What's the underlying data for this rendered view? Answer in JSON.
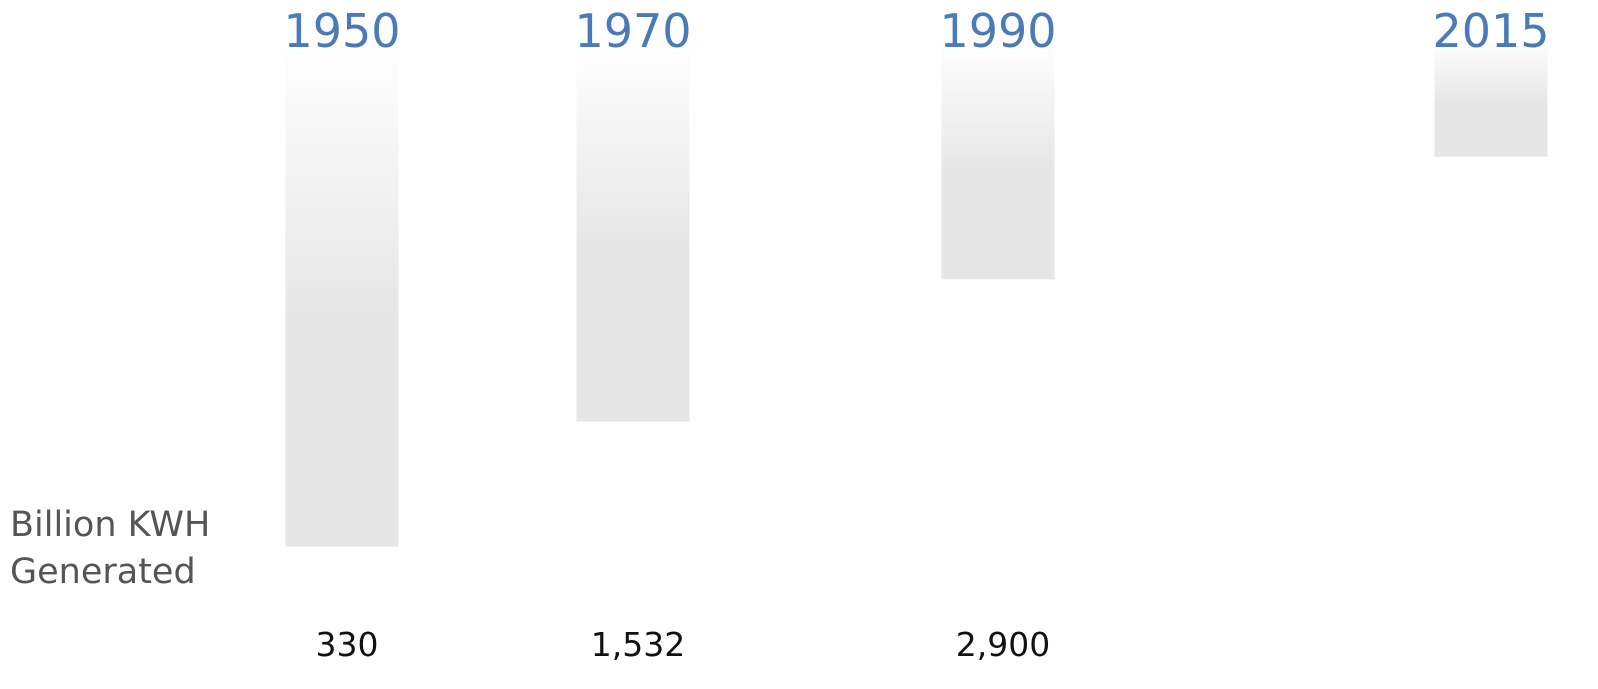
{
  "chart_data": {
    "type": "hanging-bar",
    "y_label": "Billion KWH Generated",
    "categories": [
      "1950",
      "1970",
      "1990",
      "2015"
    ],
    "values": [
      330,
      1532,
      2900,
      4078
    ],
    "value_labels": [
      "330",
      "1,532",
      "2,900",
      null
    ],
    "ylim": [
      0,
      5200
    ],
    "color": "#e6e6e6",
    "category_color": "#4a7ab8"
  }
}
